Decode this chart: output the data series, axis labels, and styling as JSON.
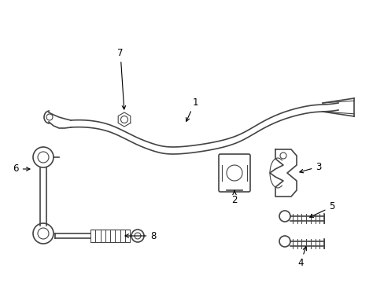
{
  "bg_color": "#ffffff",
  "line_color": "#444444",
  "label_color": "#000000",
  "fig_width": 4.89,
  "fig_height": 3.6
}
